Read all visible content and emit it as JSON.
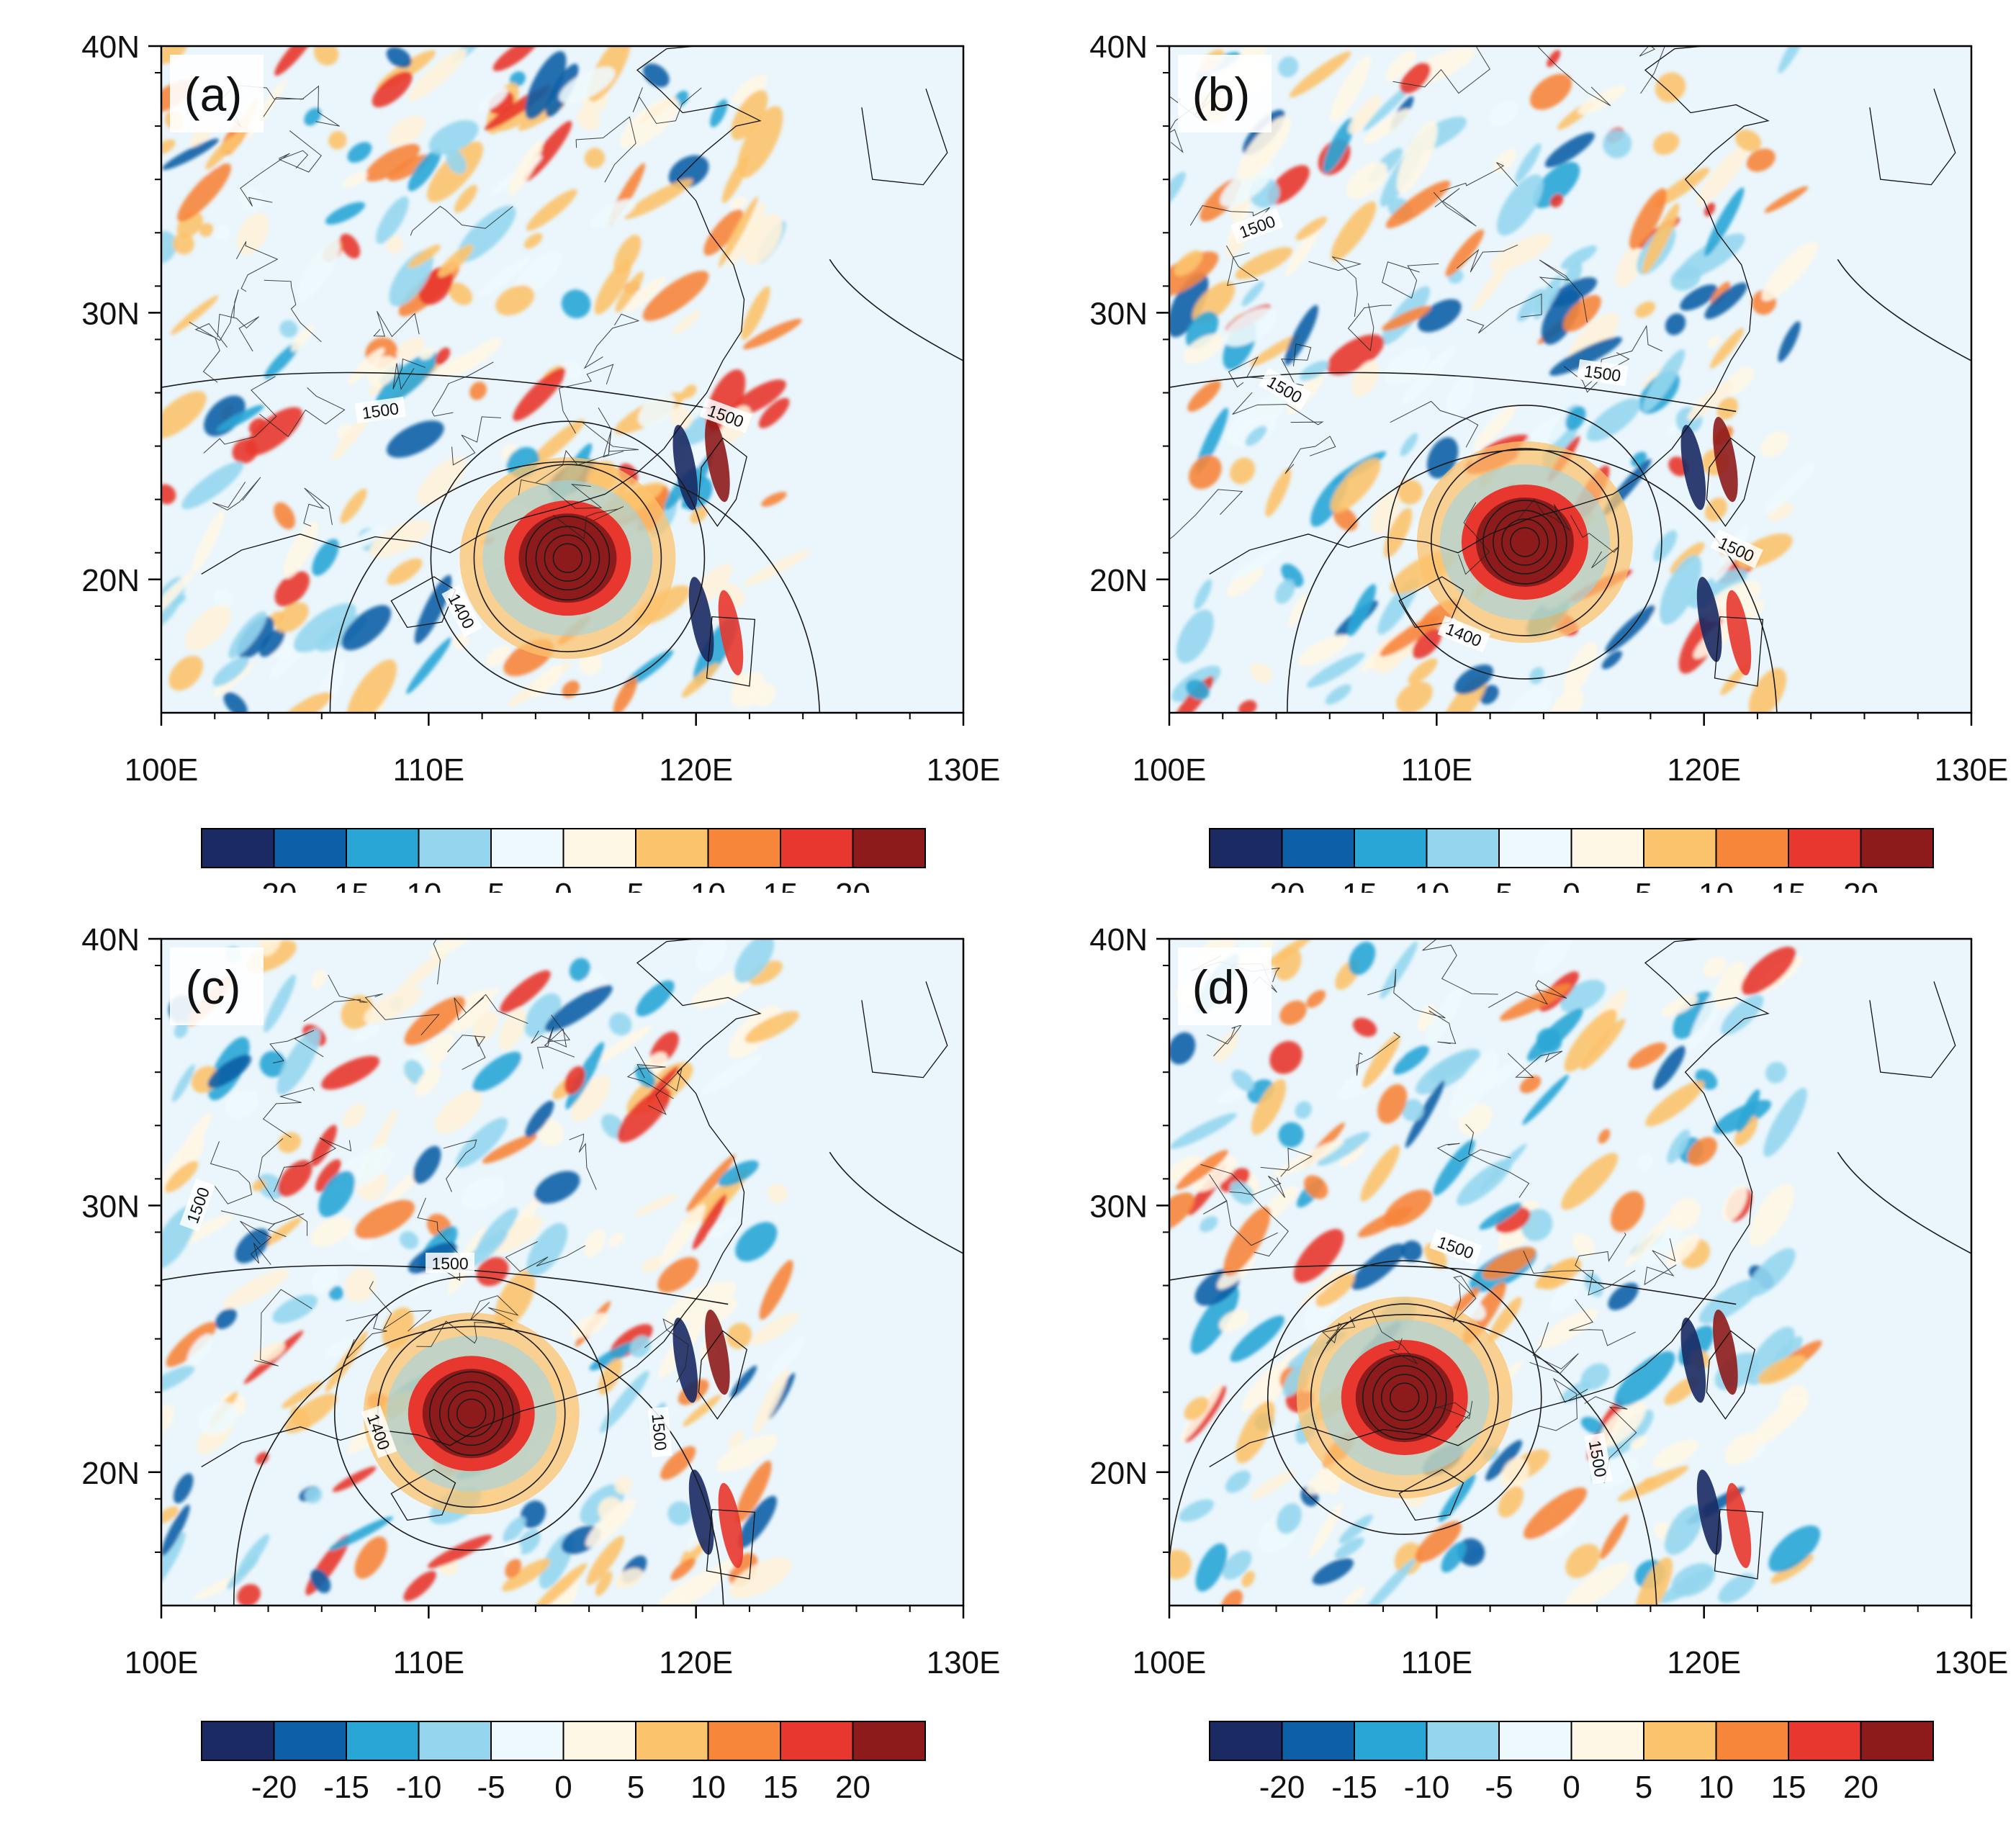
{
  "figure": {
    "longitude_range": [
      100,
      130
    ],
    "latitude_range": [
      15,
      40
    ],
    "longitude_ticks": [
      100,
      110,
      120,
      130
    ],
    "latitude_ticks": [
      20,
      30,
      40
    ],
    "longitude_tick_labels": [
      "100E",
      "110E",
      "120E",
      "130E"
    ],
    "latitude_tick_labels": [
      "20N",
      "30N",
      "40N"
    ],
    "colorbar": {
      "boundaries": [
        "-20",
        "-15",
        "-10",
        "-5",
        "0",
        "5",
        "10",
        "15",
        "20"
      ],
      "colors": [
        "#1b2a63",
        "#0d5fa6",
        "#2aa6d6",
        "#95d6ee",
        "#eef9fd",
        "#fff7e6",
        "#fcc36d",
        "#f7853a",
        "#e8372e",
        "#8e1b1b"
      ]
    }
  },
  "chart_data": [
    {
      "type": "contour-map",
      "label": "(a)",
      "center_lonlat": [
        115.2,
        20.8
      ],
      "contour_labels": [
        {
          "text": "1500",
          "lon": 108.2,
          "lat": 26.3,
          "angle": -8
        },
        {
          "text": "1500",
          "lon": 121.1,
          "lat": 26.1,
          "angle": 20
        },
        {
          "text": "1400",
          "lon": 111.2,
          "lat": 18.8,
          "angle": 62
        }
      ]
    },
    {
      "type": "contour-map",
      "label": "(b)",
      "center_lonlat": [
        113.3,
        21.4
      ],
      "contour_labels": [
        {
          "text": "1500",
          "lon": 103.3,
          "lat": 33.2,
          "angle": -20
        },
        {
          "text": "1500",
          "lon": 104.3,
          "lat": 27.1,
          "angle": 30
        },
        {
          "text": "1500",
          "lon": 116.2,
          "lat": 27.7,
          "angle": 8
        },
        {
          "text": "1500",
          "lon": 121.2,
          "lat": 21.1,
          "angle": 25
        },
        {
          "text": "1400",
          "lon": 111.0,
          "lat": 17.9,
          "angle": 22
        }
      ]
    },
    {
      "type": "contour-map",
      "label": "(c)",
      "center_lonlat": [
        111.6,
        22.2
      ],
      "contour_labels": [
        {
          "text": "1500",
          "lon": 101.4,
          "lat": 30.0,
          "angle": -70
        },
        {
          "text": "1500",
          "lon": 110.8,
          "lat": 27.8,
          "angle": 0
        },
        {
          "text": "1400",
          "lon": 108.1,
          "lat": 21.5,
          "angle": 70
        },
        {
          "text": "1500",
          "lon": 118.6,
          "lat": 21.5,
          "angle": 85
        }
      ]
    },
    {
      "type": "contour-map",
      "label": "(d)",
      "center_lonlat": [
        108.8,
        22.8
      ],
      "contour_labels": [
        {
          "text": "1500",
          "lon": 110.7,
          "lat": 28.4,
          "angle": 20
        },
        {
          "text": "1500",
          "lon": 116.0,
          "lat": 20.5,
          "angle": 80
        }
      ]
    }
  ]
}
